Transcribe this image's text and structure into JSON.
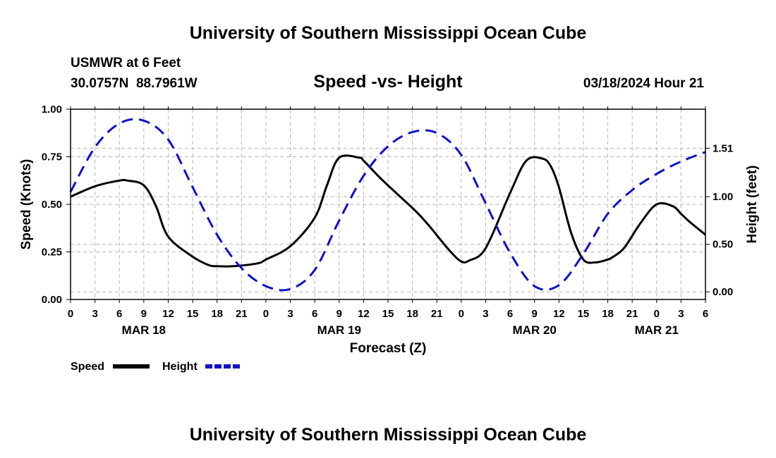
{
  "title": "University of Southern Mississippi Ocean Cube",
  "footer_title": "University of Southern Mississippi Ocean Cube",
  "station": {
    "name": "USMWR at 6 Feet",
    "coordinates": "30.0757N  88.7961W",
    "run": "03/18/2024 Hour 21"
  },
  "colors": {
    "speed": "#000000",
    "height": "#1010c8",
    "grid": "#b4b4b4"
  },
  "chart_data": {
    "type": "line",
    "title": "Speed -vs- Height",
    "xlabel": "Forecast (Z)",
    "ylabel": "Speed (Knots)",
    "y2label": "Height (feet)",
    "xlim": [
      0,
      78
    ],
    "ylim": [
      0,
      1
    ],
    "y2lim": [
      -0.08,
      1.92
    ],
    "x_ticks": [
      0,
      3,
      6,
      9,
      12,
      15,
      18,
      21,
      24,
      27,
      30,
      33,
      36,
      39,
      42,
      45,
      48,
      51,
      54,
      57,
      60,
      63,
      66,
      69,
      72,
      75,
      78
    ],
    "x_tick_labels": [
      "0",
      "3",
      "6",
      "9",
      "12",
      "15",
      "18",
      "21",
      "0",
      "3",
      "6",
      "9",
      "12",
      "15",
      "18",
      "21",
      "0",
      "3",
      "6",
      "9",
      "12",
      "15",
      "18",
      "21",
      "0",
      "3",
      "6"
    ],
    "date_labels": [
      {
        "x": 9,
        "label": "MAR 18"
      },
      {
        "x": 33,
        "label": "MAR 19"
      },
      {
        "x": 57,
        "label": "MAR 20"
      },
      {
        "x": 72,
        "label": "MAR 21"
      }
    ],
    "y_ticks": [
      0,
      0.25,
      0.5,
      0.75,
      1
    ],
    "y_tick_labels": [
      "0.00",
      "0.25",
      "0.50",
      "0.75",
      "1.00"
    ],
    "y2_ticks": [
      0,
      0.5,
      1,
      1.51
    ],
    "y2_tick_labels": [
      "0.00",
      "0.50",
      "1.00",
      "1.51"
    ],
    "grid": true,
    "legend_position": "bottom-left",
    "series": [
      {
        "name": "Speed",
        "axis": "left",
        "style": "solid",
        "x": [
          0,
          3,
          6,
          7,
          9,
          10.5,
          12,
          15,
          17,
          18,
          20,
          23,
          24,
          27,
          30,
          31.5,
          33,
          35.5,
          36,
          38,
          40,
          42.5,
          44,
          46.5,
          48,
          49,
          51,
          54,
          56,
          58,
          59,
          60,
          61.5,
          63,
          64.5,
          66,
          66.5,
          68,
          70,
          72,
          74,
          75,
          76,
          78
        ],
        "values": [
          0.54,
          0.595,
          0.625,
          0.625,
          0.6,
          0.49,
          0.33,
          0.225,
          0.18,
          0.175,
          0.175,
          0.19,
          0.21,
          0.28,
          0.43,
          0.6,
          0.745,
          0.745,
          0.73,
          0.64,
          0.56,
          0.46,
          0.39,
          0.26,
          0.2,
          0.205,
          0.27,
          0.56,
          0.73,
          0.74,
          0.7,
          0.59,
          0.35,
          0.21,
          0.195,
          0.21,
          0.22,
          0.27,
          0.4,
          0.5,
          0.49,
          0.45,
          0.41,
          0.34
        ]
      },
      {
        "name": "Height",
        "axis": "right",
        "style": "dashed",
        "x": [
          0,
          3,
          6,
          9,
          12,
          15,
          18,
          21,
          24,
          27,
          30,
          33,
          36,
          39,
          42,
          45,
          48,
          51,
          54,
          57,
          60,
          63,
          66,
          69,
          72,
          75,
          78
        ],
        "values": [
          1.05,
          1.52,
          1.77,
          1.8,
          1.6,
          1.1,
          0.6,
          0.25,
          0.06,
          0.03,
          0.23,
          0.75,
          1.22,
          1.53,
          1.68,
          1.67,
          1.44,
          0.93,
          0.41,
          0.06,
          0.07,
          0.4,
          0.82,
          1.07,
          1.24,
          1.37,
          1.47
        ]
      }
    ]
  },
  "legend": {
    "speed_label": "Speed",
    "height_label": "Height"
  }
}
